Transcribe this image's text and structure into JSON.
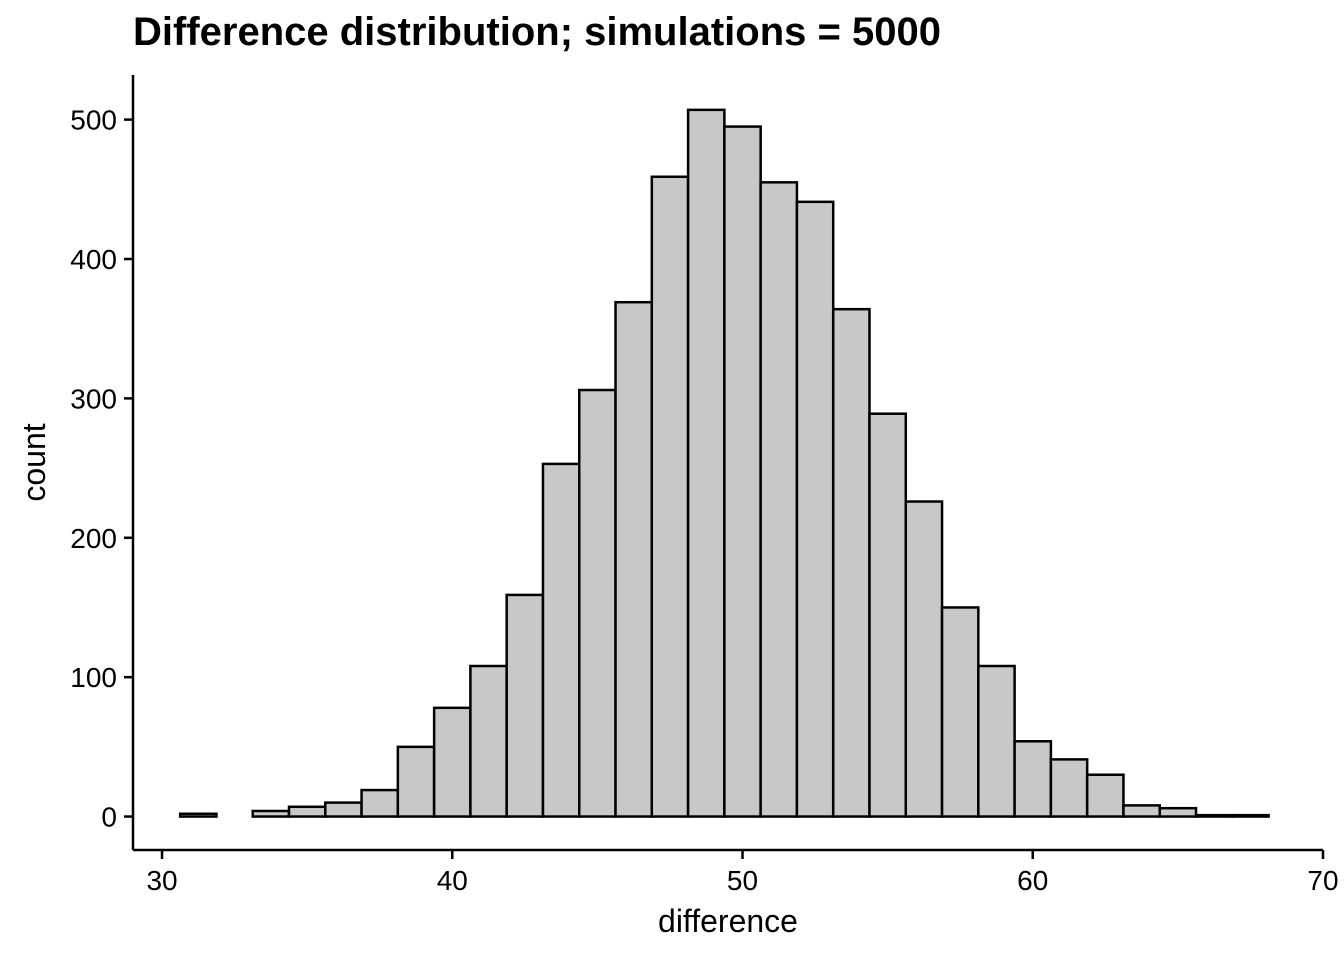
{
  "chart_data": {
    "type": "bar",
    "title": "Difference distribution; simulations = 5000",
    "xlabel": "difference",
    "ylabel": "count",
    "xlim": [
      29,
      70
    ],
    "ylim": [
      -24,
      532
    ],
    "x_ticks": [
      30,
      40,
      50,
      60,
      70
    ],
    "y_ticks": [
      0,
      100,
      200,
      300,
      400,
      500
    ],
    "bin_width": 1.25,
    "bin_centers": [
      31.25,
      32.5,
      33.75,
      35.0,
      36.25,
      37.5,
      38.75,
      40.0,
      41.25,
      42.5,
      43.75,
      45.0,
      46.25,
      47.5,
      48.75,
      50.0,
      51.25,
      52.5,
      53.75,
      55.0,
      56.25,
      57.5,
      58.75,
      60.0,
      61.25,
      62.5,
      63.75,
      65.0,
      66.25,
      67.5
    ],
    "values": [
      2,
      0,
      4,
      7,
      10,
      19,
      50,
      78,
      108,
      159,
      253,
      306,
      369,
      459,
      507,
      495,
      455,
      441,
      364,
      289,
      226,
      150,
      108,
      54,
      41,
      30,
      8,
      6,
      1,
      1
    ],
    "fill_color": "#c8c8c8",
    "edge_color": "#000000",
    "grid": false,
    "legend": "none"
  }
}
